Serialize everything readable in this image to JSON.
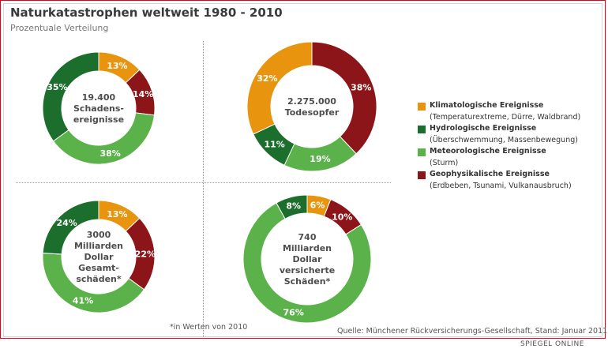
{
  "header": {
    "title": "Naturkatastrophen weltweit 1980 - 2010",
    "subtitle": "Prozentuale Verteilung"
  },
  "colors": {
    "klimatologisch": "#e8940e",
    "hydrologisch": "#1c6e2c",
    "meteorologisch": "#5cb24a",
    "geophysikalisch": "#8b1518"
  },
  "chart_data": [
    {
      "type": "pie",
      "title": "19.400 Schadensereignisse",
      "center_lines": [
        "19.400",
        "Schadens-",
        "ereignisse"
      ],
      "categories": [
        "Klimatologische Ereignisse",
        "Geophysikalische Ereignisse",
        "Meteorologische Ereignisse",
        "Hydrologische Ereignisse"
      ],
      "values": [
        13,
        14,
        38,
        35
      ],
      "labels": [
        "13%",
        "14%",
        "38%",
        "35%"
      ]
    },
    {
      "type": "pie",
      "title": "2.275.000 Todesopfer",
      "center_lines": [
        "2.275.000",
        "Todesopfer"
      ],
      "categories": [
        "Geophysikalische Ereignisse",
        "Meteorologische Ereignisse",
        "Hydrologische Ereignisse",
        "Klimatologische Ereignisse"
      ],
      "values": [
        38,
        19,
        11,
        32
      ],
      "labels": [
        "38%",
        "19%",
        "11%",
        "32%"
      ]
    },
    {
      "type": "pie",
      "title": "3000 Milliarden Dollar Gesamtschäden*",
      "center_lines": [
        "3000",
        "Milliarden",
        "Dollar",
        "Gesamt-",
        "schäden*"
      ],
      "categories": [
        "Klimatologische Ereignisse",
        "Geophysikalische Ereignisse",
        "Meteorologische Ereignisse",
        "Hydrologische Ereignisse"
      ],
      "values": [
        13,
        22,
        41,
        24
      ],
      "labels": [
        "13%",
        "22%",
        "41%",
        "24%"
      ]
    },
    {
      "type": "pie",
      "title": "740 Milliarden Dollar versicherte Schäden*",
      "center_lines": [
        "740",
        "Milliarden",
        "Dollar",
        "versicherte",
        "Schäden*"
      ],
      "categories": [
        "Klimatologische Ereignisse",
        "Geophysikalische Ereignisse",
        "Meteorologische Ereignisse",
        "Hydrologische Ereignisse"
      ],
      "values": [
        6,
        10,
        76,
        8
      ],
      "labels": [
        "6%",
        "10%",
        "76%",
        "8%"
      ]
    }
  ],
  "legend": [
    {
      "name": "Klimatologische Ereignisse",
      "desc": "(Temperaturextreme, Dürre, Waldbrand)",
      "color": "#e8940e"
    },
    {
      "name": "Hydrologische Ereignisse",
      "desc": "(Überschwemmung, Massenbewegung)",
      "color": "#1c6e2c"
    },
    {
      "name": "Meteorologische Ereignisse",
      "desc": "(Sturm)",
      "color": "#5cb24a"
    },
    {
      "name": "Geophysikalische Ereignisse",
      "desc": "(Erdbeben, Tsunami, Vulkanausbruch)",
      "color": "#8b1518"
    }
  ],
  "footnote": "*in Werten von 2010",
  "source": "Quelle: Münchener Rückversicherungs-Gesellschaft, Stand: Januar 2011",
  "brand": "SPIEGEL ONLINE"
}
